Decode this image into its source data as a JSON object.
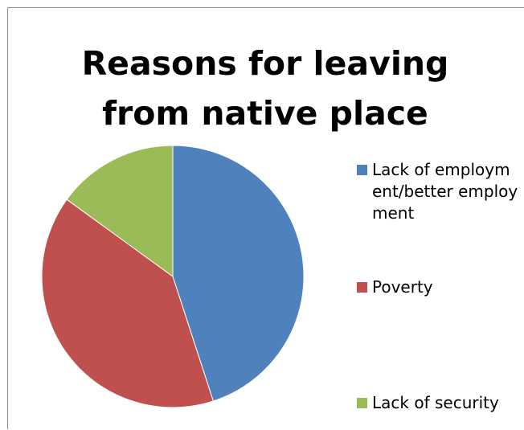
{
  "chart_data": {
    "type": "pie",
    "title": "Reasons for leaving from native place",
    "categories": [
      "Lack of employment/better employment",
      "Poverty",
      "Lack of security"
    ],
    "values": [
      45,
      40,
      15
    ],
    "colors": [
      "#4f81bd",
      "#c0504d",
      "#9bbb59"
    ],
    "legend_position": "right"
  }
}
